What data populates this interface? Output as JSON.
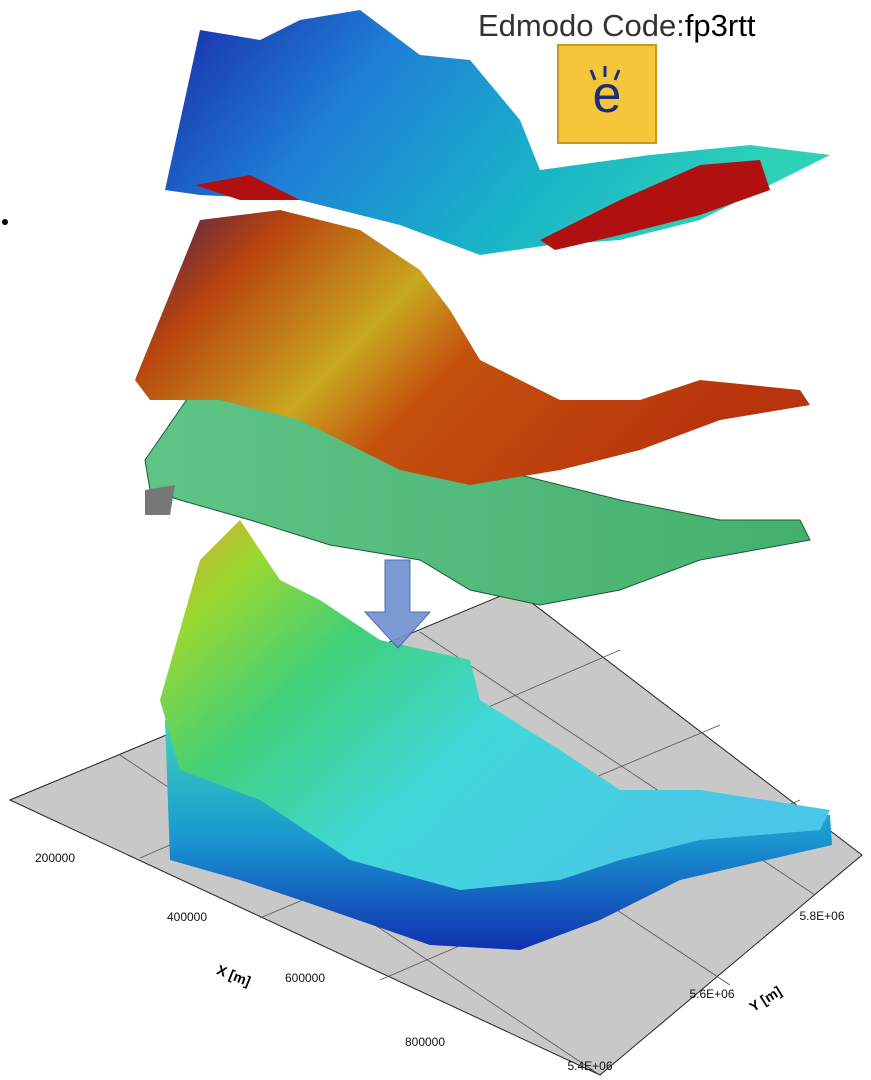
{
  "header": {
    "label": "Edmodo Code:",
    "code": "fp3rtt"
  },
  "logo": {
    "letter": "e"
  },
  "axes": {
    "x": {
      "title": "X [m]",
      "ticks": [
        "200000",
        "400000",
        "600000",
        "800000"
      ]
    },
    "y": {
      "title": "Y [m]",
      "ticks": [
        "5.4E+06",
        "5.6E+06",
        "5.8E+06"
      ]
    }
  }
}
